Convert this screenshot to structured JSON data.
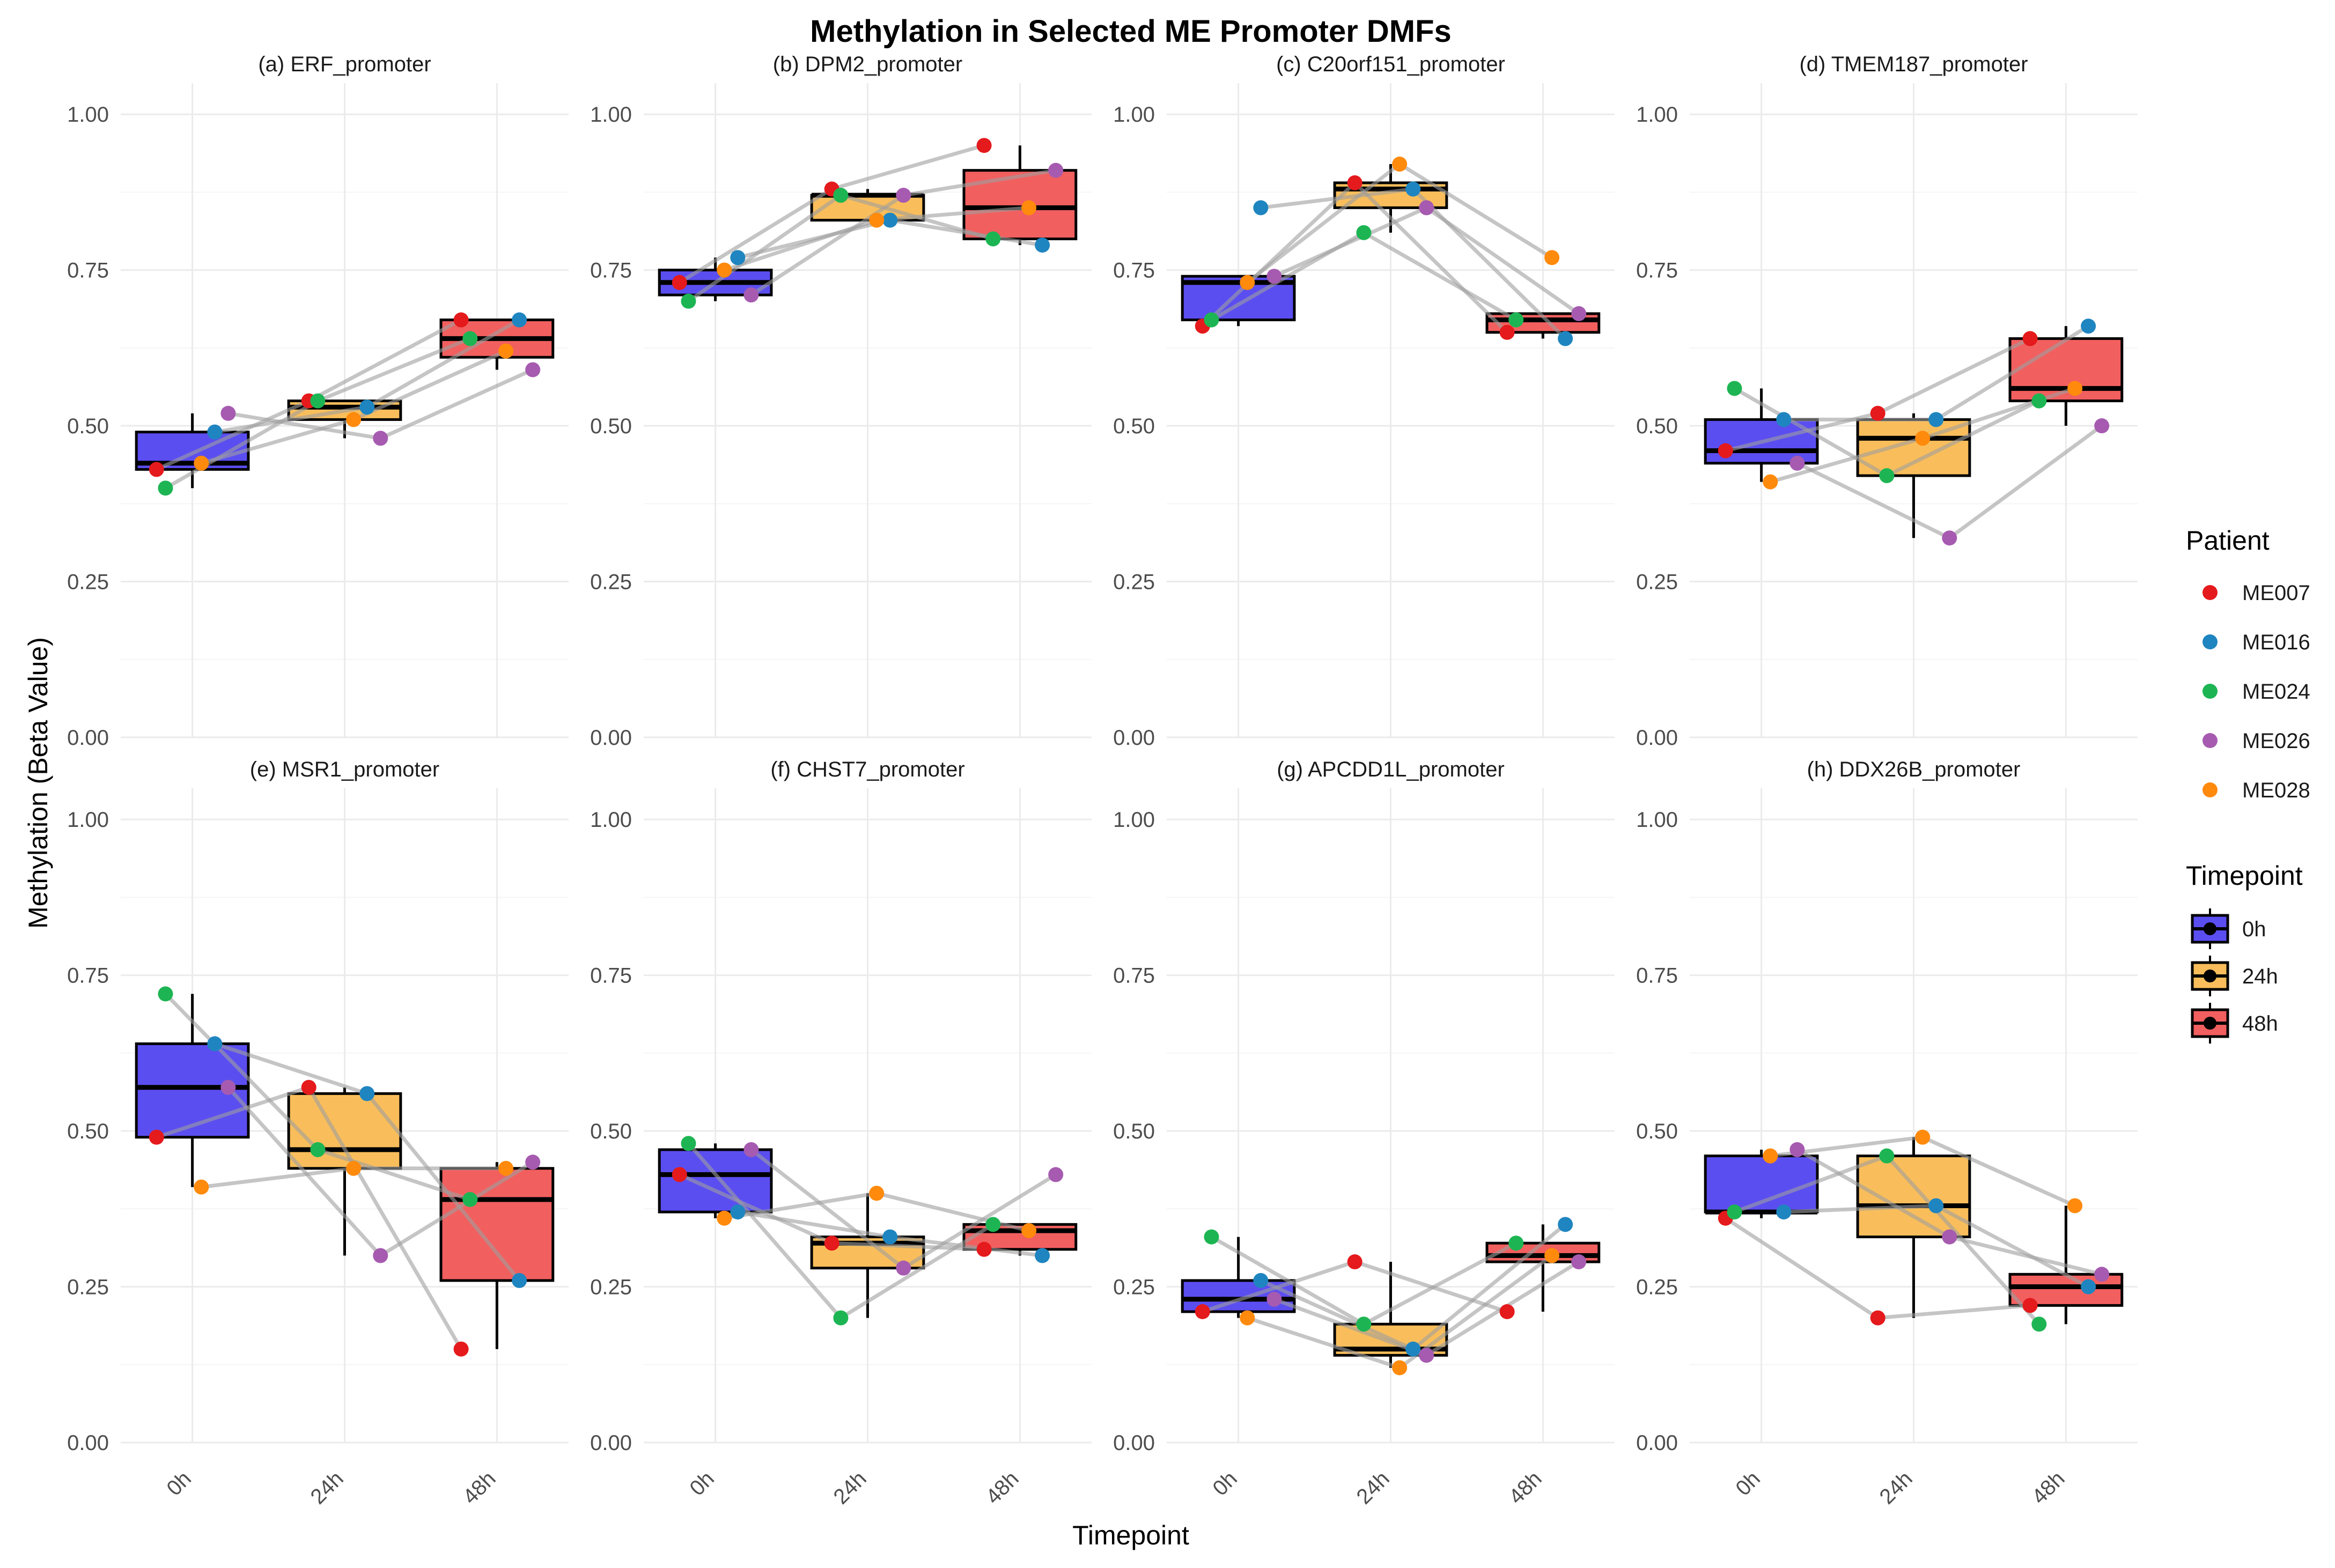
{
  "title": "Methylation in Selected ME Promoter DMFs",
  "xlabel": "Timepoint",
  "ylabel": "Methylation (Beta Value)",
  "legend_patient": {
    "title": "Patient",
    "entries": [
      {
        "label": "ME007",
        "color": "#E41A1C"
      },
      {
        "label": "ME016",
        "color": "#1F85C0"
      },
      {
        "label": "ME024",
        "color": "#1DB553"
      },
      {
        "label": "ME026",
        "color": "#A65BB0"
      },
      {
        "label": "ME028",
        "color": "#FF8A0C"
      }
    ]
  },
  "legend_timepoint": {
    "title": "Timepoint",
    "entries": [
      {
        "label": "0h",
        "color": "#5B4EF0"
      },
      {
        "label": "24h",
        "color": "#F9BE5B"
      },
      {
        "label": "48h",
        "color": "#F25F5F"
      }
    ]
  },
  "chart_data": {
    "type": "box",
    "categories": [
      "0h",
      "24h",
      "48h"
    ],
    "ylim": [
      0,
      1.05
    ],
    "yticks": [
      "0.00",
      "0.25",
      "0.50",
      "0.75",
      "1.00"
    ],
    "ytick_values": [
      0,
      0.25,
      0.5,
      0.75,
      1.0
    ],
    "patients": [
      "ME007",
      "ME016",
      "ME024",
      "ME026",
      "ME028"
    ],
    "panels": [
      {
        "title": "(a) ERF_promoter",
        "series": {
          "ME007": [
            0.43,
            0.54,
            0.67
          ],
          "ME016": [
            0.49,
            0.53,
            0.67
          ],
          "ME024": [
            0.4,
            0.54,
            0.64
          ],
          "ME026": [
            0.52,
            0.48,
            0.59
          ],
          "ME028": [
            0.44,
            0.51,
            0.62
          ]
        },
        "boxes": [
          {
            "q1": 0.43,
            "median": 0.44,
            "q3": 0.49,
            "lo": 0.4,
            "hi": 0.52
          },
          {
            "q1": 0.51,
            "median": 0.53,
            "q3": 0.54,
            "lo": 0.48,
            "hi": 0.54
          },
          {
            "q1": 0.61,
            "median": 0.64,
            "q3": 0.67,
            "lo": 0.59,
            "hi": 0.67
          }
        ]
      },
      {
        "title": "(b) DPM2_promoter",
        "series": {
          "ME007": [
            0.73,
            0.88,
            0.95
          ],
          "ME016": [
            0.77,
            0.83,
            0.79
          ],
          "ME024": [
            0.7,
            0.87,
            0.8
          ],
          "ME026": [
            0.71,
            0.87,
            0.91
          ],
          "ME028": [
            0.75,
            0.83,
            0.85
          ]
        },
        "boxes": [
          {
            "q1": 0.71,
            "median": 0.73,
            "q3": 0.75,
            "lo": 0.7,
            "hi": 0.77
          },
          {
            "q1": 0.83,
            "median": 0.87,
            "q3": 0.87,
            "lo": 0.83,
            "hi": 0.88
          },
          {
            "q1": 0.8,
            "median": 0.85,
            "q3": 0.91,
            "lo": 0.79,
            "hi": 0.95
          }
        ]
      },
      {
        "title": "(c) C20orf151_promoter",
        "series": {
          "ME007": [
            0.66,
            0.89,
            0.65
          ],
          "ME016": [
            0.85,
            0.88,
            0.64
          ],
          "ME024": [
            0.67,
            0.81,
            0.67
          ],
          "ME026": [
            0.74,
            0.85,
            0.68
          ],
          "ME028": [
            0.73,
            0.92,
            0.77
          ]
        },
        "boxes": [
          {
            "q1": 0.67,
            "median": 0.73,
            "q3": 0.74,
            "lo": 0.66,
            "hi": 0.74
          },
          {
            "q1": 0.85,
            "median": 0.88,
            "q3": 0.89,
            "lo": 0.81,
            "hi": 0.92
          },
          {
            "q1": 0.65,
            "median": 0.67,
            "q3": 0.68,
            "lo": 0.64,
            "hi": 0.68
          }
        ]
      },
      {
        "title": "(d) TMEM187_promoter",
        "series": {
          "ME007": [
            0.46,
            0.52,
            0.64
          ],
          "ME016": [
            0.51,
            0.51,
            0.66
          ],
          "ME024": [
            0.56,
            0.42,
            0.54
          ],
          "ME026": [
            0.44,
            0.32,
            0.5
          ],
          "ME028": [
            0.41,
            0.48,
            0.56
          ]
        },
        "boxes": [
          {
            "q1": 0.44,
            "median": 0.46,
            "q3": 0.51,
            "lo": 0.41,
            "hi": 0.56
          },
          {
            "q1": 0.42,
            "median": 0.48,
            "q3": 0.51,
            "lo": 0.32,
            "hi": 0.52
          },
          {
            "q1": 0.54,
            "median": 0.56,
            "q3": 0.64,
            "lo": 0.5,
            "hi": 0.66
          }
        ]
      },
      {
        "title": "(e) MSR1_promoter",
        "series": {
          "ME007": [
            0.49,
            0.57,
            0.15
          ],
          "ME016": [
            0.64,
            0.56,
            0.26
          ],
          "ME024": [
            0.72,
            0.47,
            0.39
          ],
          "ME026": [
            0.57,
            0.3,
            0.45
          ],
          "ME028": [
            0.41,
            0.44,
            0.44
          ]
        },
        "boxes": [
          {
            "q1": 0.49,
            "median": 0.57,
            "q3": 0.64,
            "lo": 0.41,
            "hi": 0.72
          },
          {
            "q1": 0.44,
            "median": 0.47,
            "q3": 0.56,
            "lo": 0.3,
            "hi": 0.57
          },
          {
            "q1": 0.26,
            "median": 0.39,
            "q3": 0.44,
            "lo": 0.15,
            "hi": 0.45
          }
        ]
      },
      {
        "title": "(f) CHST7_promoter",
        "series": {
          "ME007": [
            0.43,
            0.32,
            0.31
          ],
          "ME016": [
            0.37,
            0.33,
            0.3
          ],
          "ME024": [
            0.48,
            0.2,
            0.35
          ],
          "ME026": [
            0.47,
            0.28,
            0.43
          ],
          "ME028": [
            0.36,
            0.4,
            0.34
          ]
        },
        "boxes": [
          {
            "q1": 0.37,
            "median": 0.43,
            "q3": 0.47,
            "lo": 0.36,
            "hi": 0.48
          },
          {
            "q1": 0.28,
            "median": 0.32,
            "q3": 0.33,
            "lo": 0.2,
            "hi": 0.4
          },
          {
            "q1": 0.31,
            "median": 0.34,
            "q3": 0.35,
            "lo": 0.3,
            "hi": 0.35
          }
        ]
      },
      {
        "title": "(g) APCDD1L_promoter",
        "series": {
          "ME007": [
            0.21,
            0.29,
            0.21
          ],
          "ME016": [
            0.26,
            0.15,
            0.35
          ],
          "ME024": [
            0.33,
            0.19,
            0.32
          ],
          "ME026": [
            0.23,
            0.14,
            0.29
          ],
          "ME028": [
            0.2,
            0.12,
            0.3
          ]
        },
        "boxes": [
          {
            "q1": 0.21,
            "median": 0.23,
            "q3": 0.26,
            "lo": 0.2,
            "hi": 0.33
          },
          {
            "q1": 0.14,
            "median": 0.15,
            "q3": 0.19,
            "lo": 0.12,
            "hi": 0.29
          },
          {
            "q1": 0.29,
            "median": 0.3,
            "q3": 0.32,
            "lo": 0.21,
            "hi": 0.35
          }
        ]
      },
      {
        "title": "(h) DDX26B_promoter",
        "series": {
          "ME007": [
            0.36,
            0.2,
            0.22
          ],
          "ME016": [
            0.37,
            0.38,
            0.25
          ],
          "ME024": [
            0.37,
            0.46,
            0.19
          ],
          "ME026": [
            0.47,
            0.33,
            0.27
          ],
          "ME028": [
            0.46,
            0.49,
            0.38
          ]
        },
        "boxes": [
          {
            "q1": 0.37,
            "median": 0.37,
            "q3": 0.46,
            "lo": 0.36,
            "hi": 0.47
          },
          {
            "q1": 0.33,
            "median": 0.38,
            "q3": 0.46,
            "lo": 0.2,
            "hi": 0.49
          },
          {
            "q1": 0.22,
            "median": 0.25,
            "q3": 0.27,
            "lo": 0.19,
            "hi": 0.38
          }
        ]
      }
    ]
  }
}
